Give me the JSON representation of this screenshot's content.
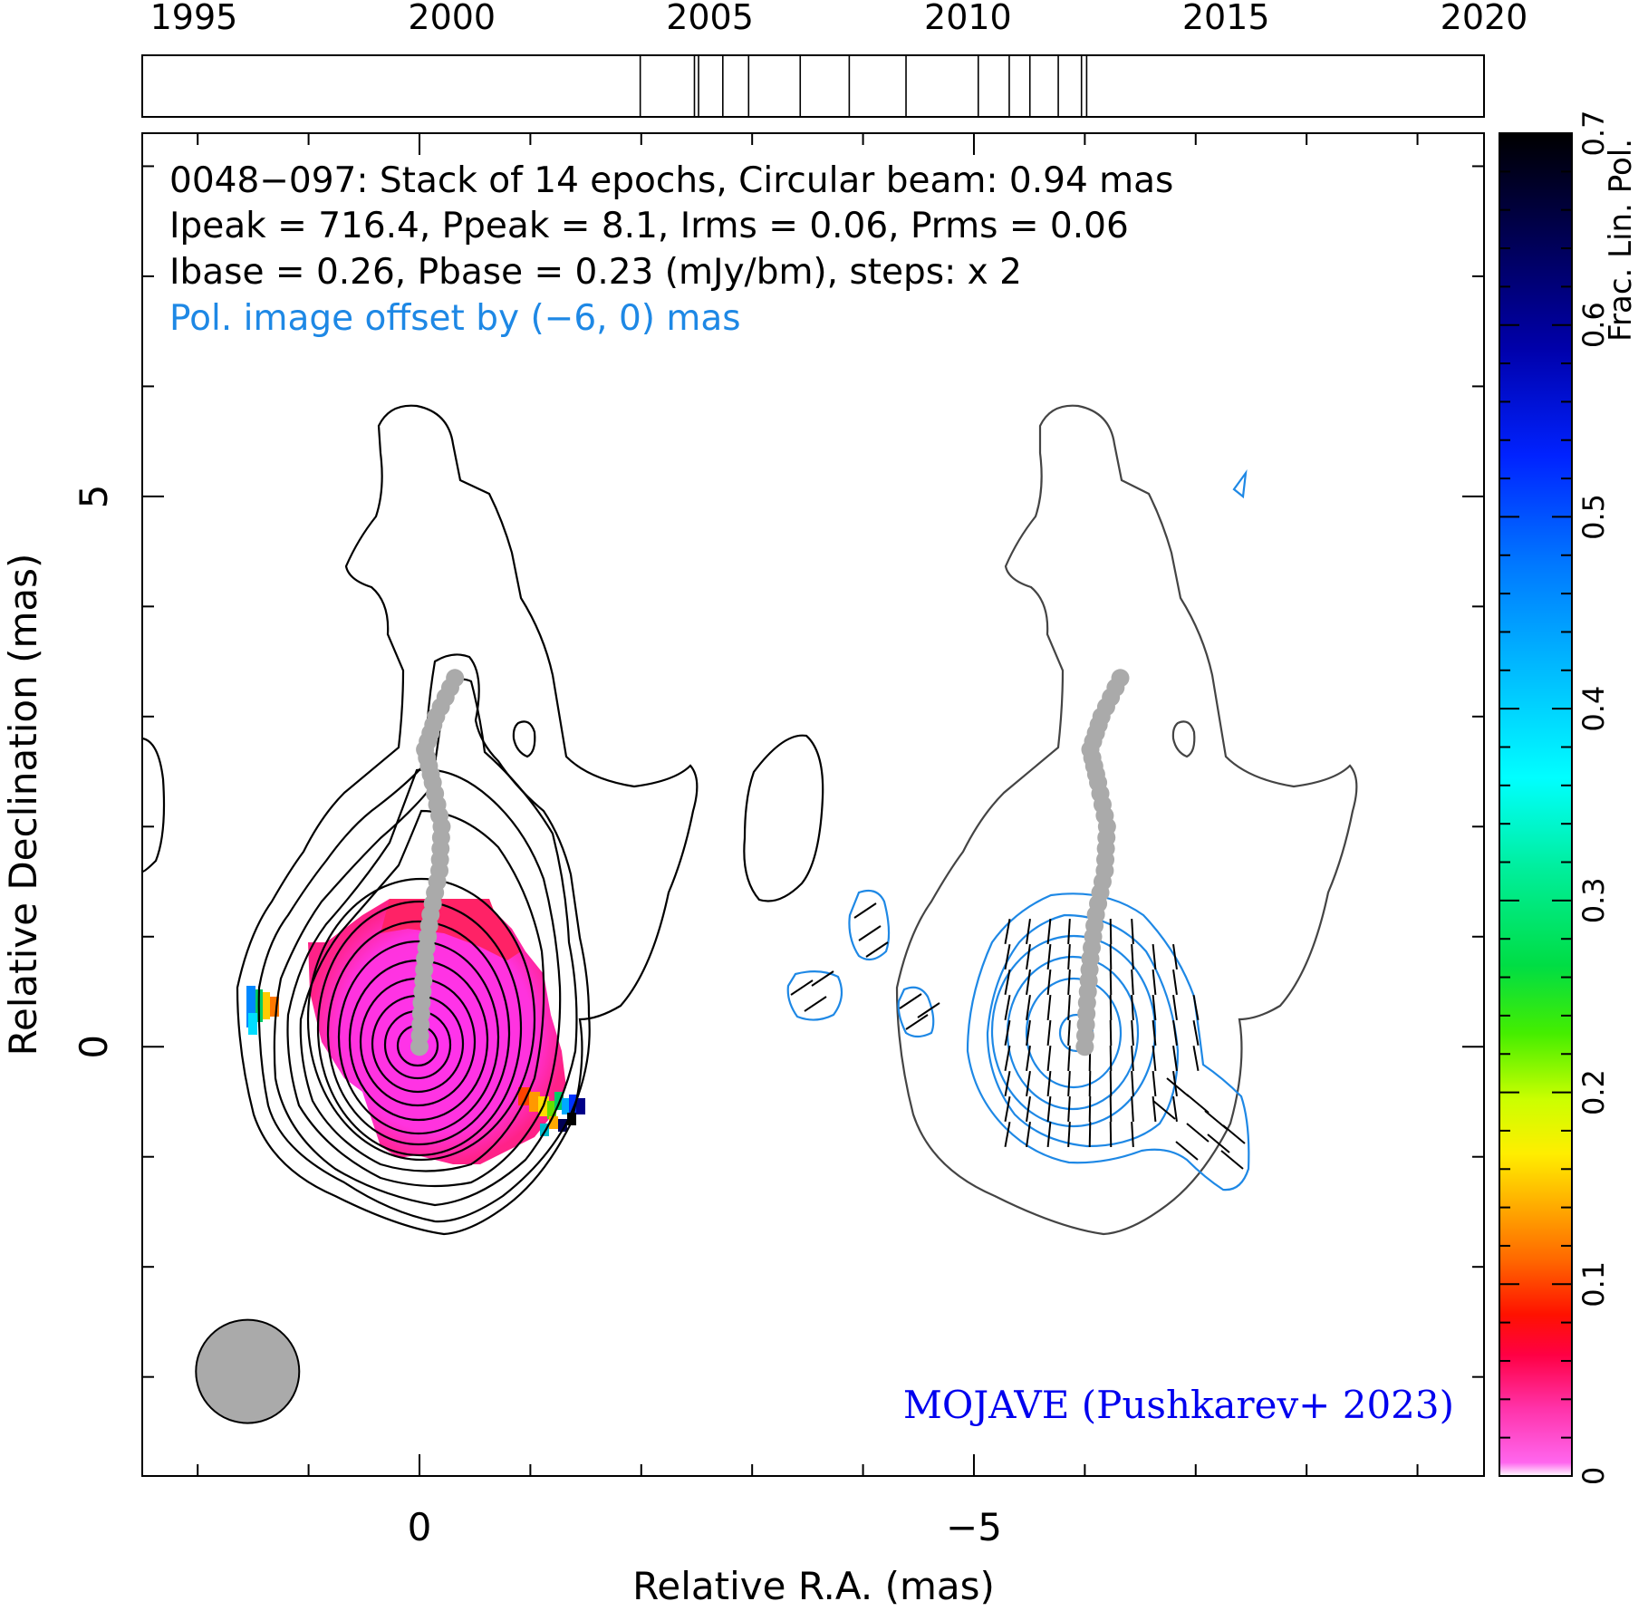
{
  "chart_data": {
    "type": "contour",
    "source": "0048−097",
    "header_lines": [
      "0048−097: Stack of 14 epochs, Circular beam: 0.94 mas",
      "Ipeak = 716.4, Ppeak = 8.1, Irms = 0.06, Prms = 0.06",
      "Ibase = 0.26, Pbase = 0.23 (mJy/bm), steps: x 2"
    ],
    "offset_note": "Pol. image offset by (−6, 0) mas",
    "credit": "MOJAVE (Pushkarev+ 2023)",
    "xlabel": "Relative R.A. (mas)",
    "ylabel": "Relative Declination (mas)",
    "x_ticks": [
      "0",
      "−5"
    ],
    "x_tick_values": [
      0,
      -5
    ],
    "y_ticks": [
      "0",
      "5"
    ],
    "y_tick_values": [
      0,
      5
    ],
    "xlim": [
      2.5,
      -9.6
    ],
    "ylim": [
      -3.9,
      8.3
    ],
    "timeline": {
      "tick_labels": [
        "1995",
        "2000",
        "2005",
        "2010",
        "2015",
        "2020"
      ],
      "tick_values": [
        1995,
        2000,
        2005,
        2010,
        2015,
        2020
      ],
      "range": [
        1994,
        2020
      ],
      "epochs": [
        2003.65,
        2004.7,
        2004.78,
        2005.25,
        2005.75,
        2006.75,
        2007.7,
        2008.8,
        2010.2,
        2010.8,
        2011.2,
        2011.75,
        2012.2,
        2012.3
      ]
    },
    "colorbar": {
      "label": "Frac. Lin. Pol.",
      "tick_labels": [
        "0",
        "0.1",
        "0.2",
        "0.3",
        "0.4",
        "0.5",
        "0.6",
        "0.7"
      ],
      "tick_values": [
        0,
        0.1,
        0.2,
        0.3,
        0.4,
        0.5,
        0.6,
        0.7
      ],
      "range": [
        0,
        0.7
      ]
    },
    "beam": {
      "shape": "circle",
      "fwhm_mas": 0.94,
      "center_mas": [
        1.55,
        -2.95
      ]
    },
    "ridge_line_mas": [
      [
        0,
        0
      ],
      [
        -0.02,
        0.4
      ],
      [
        -0.05,
        0.8
      ],
      [
        -0.1,
        1.2
      ],
      [
        -0.18,
        1.6
      ],
      [
        -0.2,
        2.0
      ],
      [
        -0.12,
        2.4
      ],
      [
        -0.05,
        2.7
      ],
      [
        -0.15,
        3.0
      ],
      [
        -0.32,
        3.35
      ]
    ],
    "polarization_offset_mas": [
      -6,
      0
    ]
  },
  "colors": {
    "total_intensity_contours": "#000000",
    "pol_contours": "#1e88e5",
    "ridge": "#aaaaaa",
    "credit": "#0000ee",
    "note": "#1e88e5",
    "frac_pol_core": "#ff33cc"
  }
}
